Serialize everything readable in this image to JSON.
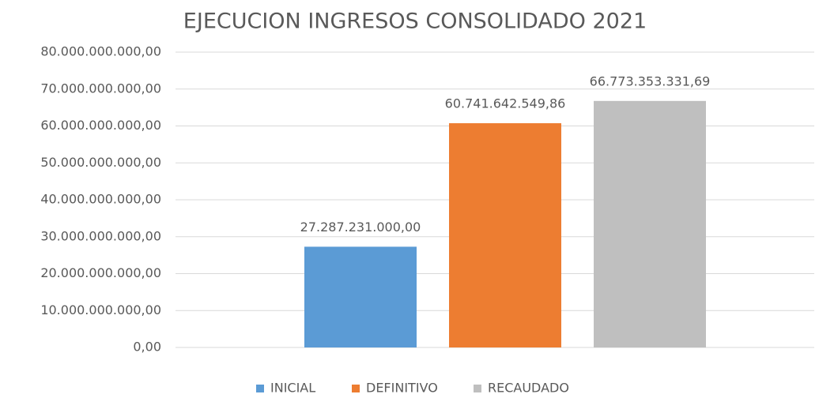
{
  "chart_data": {
    "type": "bar",
    "title": "EJECUCION INGRESOS CONSOLIDADO 2021",
    "categories": [
      null
    ],
    "series": [
      {
        "name": "INICIAL",
        "color": "#5b9bd5",
        "values": [
          27287231000
        ],
        "value_labels": [
          "27.287.231.000,00"
        ]
      },
      {
        "name": "DEFINITIVO",
        "color": "#ed7d31",
        "values": [
          60741642549.86
        ],
        "value_labels": [
          "60.741.642.549,86"
        ]
      },
      {
        "name": "RECAUDADO",
        "color": "#bfbfbf",
        "values": [
          66773353331.69
        ],
        "value_labels": [
          "66.773.353.331,69"
        ]
      }
    ],
    "ylim": [
      0,
      80000000000
    ],
    "yticks": [
      {
        "value": 0,
        "label": "0,00"
      },
      {
        "value": 10000000000,
        "label": "10.000.000.000,00"
      },
      {
        "value": 20000000000,
        "label": "20.000.000.000,00"
      },
      {
        "value": 30000000000,
        "label": "30.000.000.000,00"
      },
      {
        "value": 40000000000,
        "label": "40.000.000.000,00"
      },
      {
        "value": 50000000000,
        "label": "50.000.000.000,00"
      },
      {
        "value": 60000000000,
        "label": "60.000.000.000,00"
      },
      {
        "value": 70000000000,
        "label": "70.000.000.000,00"
      },
      {
        "value": 80000000000,
        "label": "80.000.000.000,00"
      }
    ],
    "grid": true,
    "legend": "bottom"
  }
}
